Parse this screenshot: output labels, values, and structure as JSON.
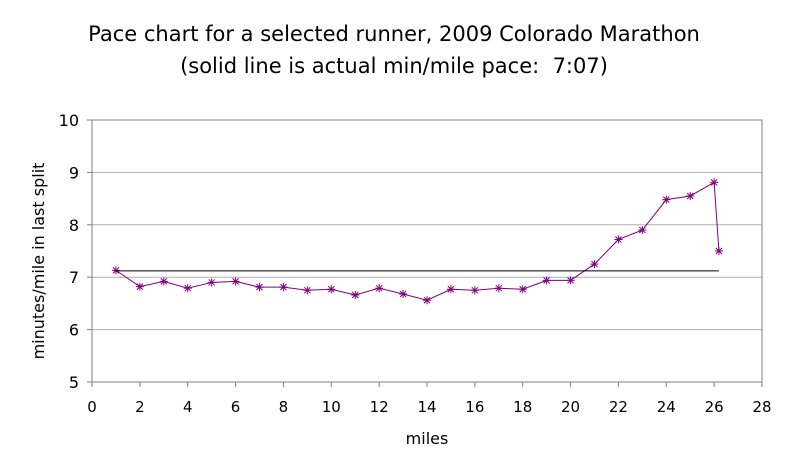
{
  "chart_data": {
    "type": "line",
    "title": "Pace chart for a selected runner, 2009 Colorado Marathon",
    "subtitle": "(solid line is actual min/mile pace:  7:07)",
    "xlabel": "miles",
    "ylabel": "minutes/mile in last split",
    "xlim": [
      0,
      28
    ],
    "ylim": [
      5,
      10
    ],
    "xticks": [
      0,
      2,
      4,
      6,
      8,
      10,
      12,
      14,
      16,
      18,
      20,
      22,
      24,
      26,
      28
    ],
    "yticks": [
      5,
      6,
      7,
      8,
      9,
      10
    ],
    "grid": {
      "horizontal": true,
      "vertical": false
    },
    "legend": "none",
    "series": [
      {
        "color": "#800080",
        "marker": "asterisk",
        "x": [
          1,
          2,
          3,
          4,
          5,
          6,
          7,
          8,
          9,
          10,
          11,
          12,
          13,
          14,
          15,
          16,
          17,
          18,
          19,
          20,
          21,
          22,
          23,
          24,
          25,
          26,
          26.2
        ],
        "y": [
          7.13,
          6.82,
          6.92,
          6.79,
          6.9,
          6.92,
          6.81,
          6.81,
          6.75,
          6.77,
          6.66,
          6.79,
          6.68,
          6.56,
          6.77,
          6.75,
          6.79,
          6.77,
          6.94,
          6.94,
          7.25,
          7.72,
          7.9,
          8.48,
          8.55,
          8.81,
          7.5
        ]
      },
      {
        "color": "#000000",
        "marker": "none",
        "x": [
          1,
          26.2
        ],
        "y": [
          7.12,
          7.12
        ]
      }
    ]
  }
}
